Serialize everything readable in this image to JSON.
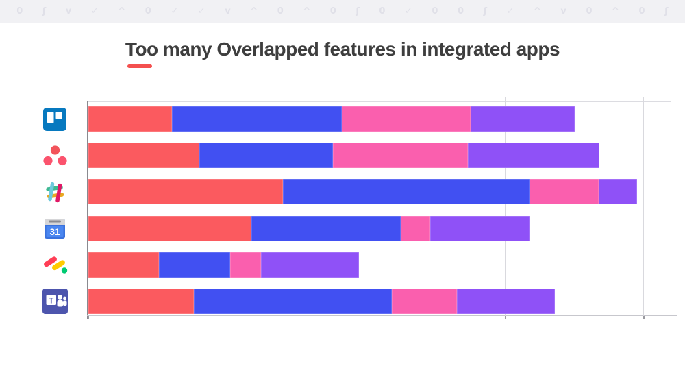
{
  "decorative_strip": {
    "background": "#f1f1f4",
    "glyph_color": "#e0e0e8",
    "glyphs": [
      "0",
      "ʃ",
      "v",
      "✓",
      "^",
      "0",
      "✓",
      "✓",
      "v",
      "^",
      "0",
      "^",
      "0",
      "ʃ",
      "0",
      "✓",
      "0",
      "0",
      "ʃ",
      "✓",
      "^",
      "v",
      "0",
      "^",
      "0",
      "ʃ"
    ]
  },
  "title": {
    "text": "Too many Overlapped features in integrated apps",
    "color": "#3e3e3e",
    "underline_color": "#f4504f"
  },
  "chart_data": {
    "type": "bar",
    "orientation": "horizontal",
    "stacked": true,
    "title": "Too many Overlapped features in integrated apps",
    "categories": [
      "Trello",
      "Asana",
      "Slack",
      "Google Calendar",
      "monday.com",
      "Microsoft Teams"
    ],
    "category_icons": [
      "trello-icon",
      "asana-icon",
      "slack-icon",
      "google-calendar-icon",
      "monday-icon",
      "microsoft-teams-icon"
    ],
    "series": [
      {
        "name": "segment-red",
        "color": "#fb5a5f",
        "values": [
          12.0,
          16.0,
          28.0,
          23.5,
          10.2,
          15.2
        ]
      },
      {
        "name": "segment-blue",
        "color": "#4150f2",
        "values": [
          24.5,
          19.2,
          35.5,
          21.5,
          10.2,
          28.5
        ]
      },
      {
        "name": "segment-pink",
        "color": "#fa5fae",
        "values": [
          18.5,
          19.4,
          10.0,
          4.2,
          4.4,
          9.3
        ]
      },
      {
        "name": "segment-purple",
        "color": "#8f51f7",
        "values": [
          15.0,
          19.0,
          5.5,
          14.3,
          14.1,
          14.1
        ]
      }
    ],
    "xlim": [
      0,
      84
    ],
    "gridline_interval": 20,
    "grid": true,
    "legend": "none",
    "axis_tick_labels": "none",
    "xlabel": "",
    "ylabel": ""
  }
}
